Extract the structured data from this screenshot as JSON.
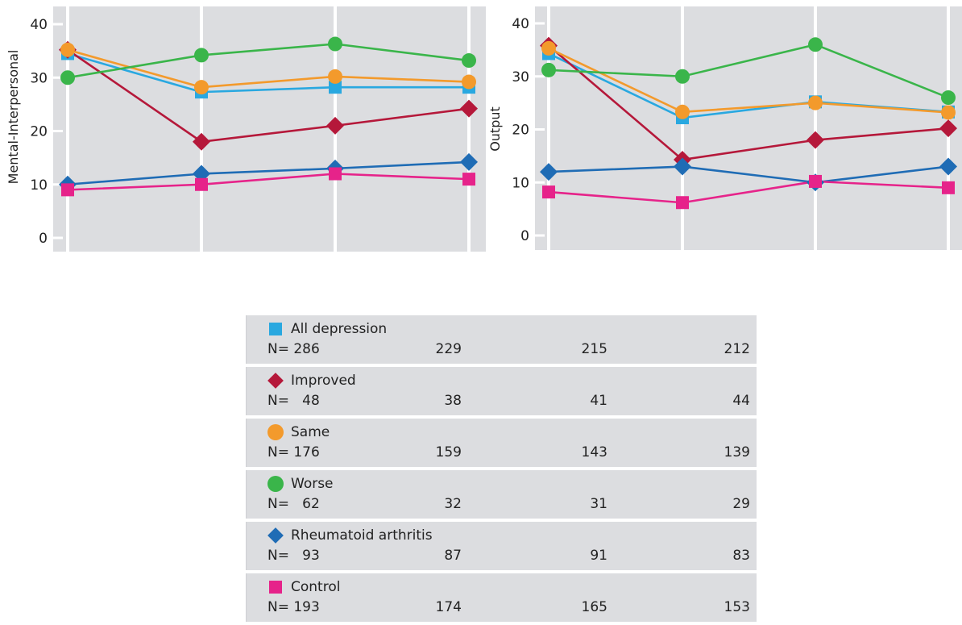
{
  "chart_data": [
    {
      "type": "line",
      "title": "",
      "xlabel": "",
      "ylabel": "Mental-Interpersonal",
      "ylim": [
        0,
        40
      ],
      "yticks": [
        0,
        10,
        20,
        30,
        40
      ],
      "grid": true,
      "x": [
        1,
        2,
        3,
        4
      ],
      "series": [
        {
          "name": "All depression",
          "color": "#29a8e0",
          "marker": "square",
          "values": [
            34.5,
            27.3,
            28.2,
            28.2
          ]
        },
        {
          "name": "Improved",
          "color": "#b5183a",
          "marker": "diamond",
          "values": [
            35.2,
            18.0,
            21.0,
            24.2
          ]
        },
        {
          "name": "Same",
          "color": "#f39a2c",
          "marker": "circle",
          "values": [
            35.2,
            28.2,
            30.2,
            29.2
          ]
        },
        {
          "name": "Worse",
          "color": "#3ab54a",
          "marker": "circle",
          "values": [
            30.0,
            34.2,
            36.3,
            33.2
          ]
        },
        {
          "name": "Rheumatoid arthritis",
          "color": "#1f6cb5",
          "marker": "diamond",
          "values": [
            10.0,
            12.0,
            13.0,
            14.2
          ]
        },
        {
          "name": "Control",
          "color": "#e6238a",
          "marker": "square",
          "values": [
            9.0,
            10.0,
            12.0,
            11.0
          ]
        }
      ]
    },
    {
      "type": "line",
      "title": "",
      "xlabel": "",
      "ylabel": "Output",
      "ylim": [
        0,
        40
      ],
      "yticks": [
        0,
        10,
        20,
        30,
        40
      ],
      "grid": true,
      "x": [
        1,
        2,
        3,
        4
      ],
      "series": [
        {
          "name": "All depression",
          "color": "#29a8e0",
          "marker": "square",
          "values": [
            34.3,
            22.2,
            25.2,
            23.3
          ]
        },
        {
          "name": "Improved",
          "color": "#b5183a",
          "marker": "diamond",
          "values": [
            35.8,
            14.3,
            18.0,
            20.2
          ]
        },
        {
          "name": "Same",
          "color": "#f39a2c",
          "marker": "circle",
          "values": [
            35.3,
            23.3,
            25.0,
            23.2
          ]
        },
        {
          "name": "Worse",
          "color": "#3ab54a",
          "marker": "circle",
          "values": [
            31.2,
            30.0,
            36.0,
            26.0
          ]
        },
        {
          "name": "Rheumatoid arthritis",
          "color": "#1f6cb5",
          "marker": "diamond",
          "values": [
            12.0,
            13.0,
            10.0,
            13.0
          ]
        },
        {
          "name": "Control",
          "color": "#e6238a",
          "marker": "square",
          "values": [
            8.2,
            6.2,
            10.2,
            9.0
          ]
        }
      ]
    }
  ],
  "legend": [
    {
      "name": "All depression",
      "color": "#29a8e0",
      "marker": "square",
      "n_label": "N= 286",
      "counts": [
        "229",
        "215",
        "212"
      ]
    },
    {
      "name": "Improved",
      "color": "#b5183a",
      "marker": "diamond",
      "n_label": "N=   48",
      "counts": [
        "38",
        "41",
        "44"
      ]
    },
    {
      "name": "Same",
      "color": "#f39a2c",
      "marker": "circle",
      "n_label": "N= 176",
      "counts": [
        "159",
        "143",
        "139"
      ]
    },
    {
      "name": "Worse",
      "color": "#3ab54a",
      "marker": "circle",
      "n_label": "N=   62",
      "counts": [
        "32",
        "31",
        "29"
      ]
    },
    {
      "name": "Rheumatoid arthritis",
      "color": "#1f6cb5",
      "marker": "diamond",
      "n_label": "N=   93",
      "counts": [
        "87",
        "91",
        "83"
      ]
    },
    {
      "name": "Control",
      "color": "#e6238a",
      "marker": "square",
      "n_label": "N= 193",
      "counts": [
        "174",
        "165",
        "153"
      ]
    }
  ],
  "plot_background": "#dcdde0",
  "grid_color": "#ffffff"
}
